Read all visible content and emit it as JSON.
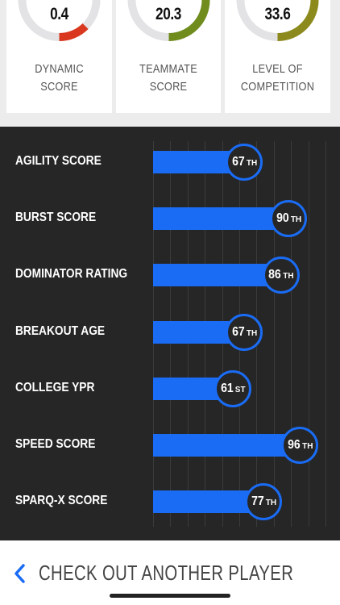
{
  "summary_cards": [
    {
      "value": "0.4",
      "label_line1": "DYNAMIC",
      "label_line2": "SCORE",
      "fill": 0.25,
      "color": "#d9381e"
    },
    {
      "value": "20.3",
      "label_line1": "TEAMMATE",
      "label_line2": "SCORE",
      "fill": 1.0,
      "color": "#6f8c1d"
    },
    {
      "value": "33.6",
      "label_line1": "LEVEL OF",
      "label_line2": "COMPETITION",
      "fill": 1.0,
      "color": "#8c8a1d"
    }
  ],
  "metrics": [
    {
      "label": "AGILITY SCORE",
      "percentile": 67,
      "suffix": "TH"
    },
    {
      "label": "BURST SCORE",
      "percentile": 90,
      "suffix": "TH"
    },
    {
      "label": "DOMINATOR RATING",
      "percentile": 86,
      "suffix": "TH"
    },
    {
      "label": "BREAKOUT AGE",
      "percentile": 67,
      "suffix": "TH"
    },
    {
      "label": "COLLEGE YPR",
      "percentile": 61,
      "suffix": "ST"
    },
    {
      "label": "SPEED SCORE",
      "percentile": 96,
      "suffix": "TH"
    },
    {
      "label": "SPARQ-X SCORE",
      "percentile": 77,
      "suffix": "TH"
    }
  ],
  "colors": {
    "bar": "#1a6cf5",
    "panel": "#262626",
    "gauge_track": "#e3e3e6"
  },
  "footer": {
    "label": "CHECK OUT ANOTHER PLAYER",
    "icon": "chevron-left-icon"
  }
}
